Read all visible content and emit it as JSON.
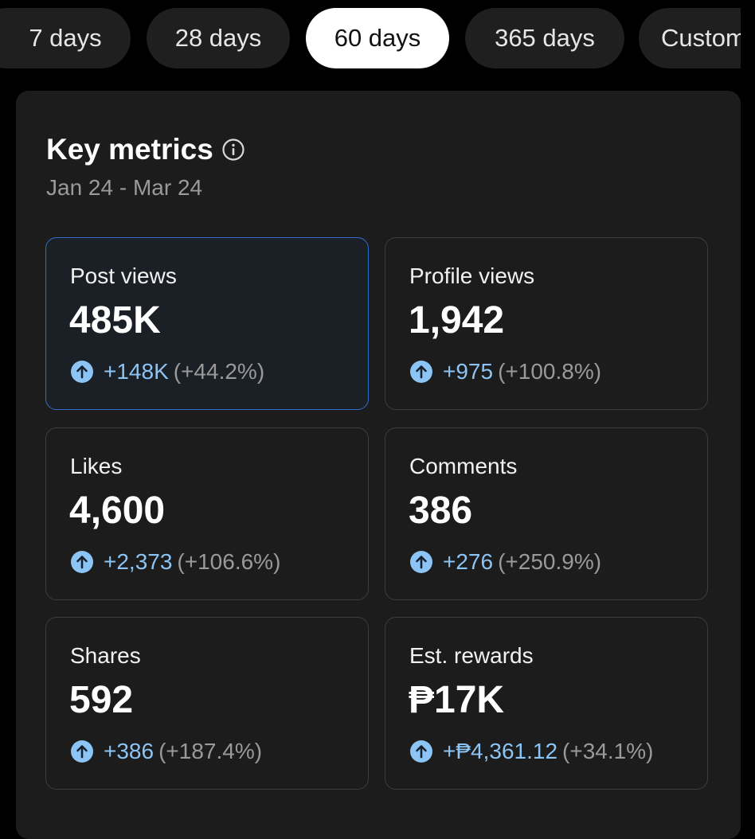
{
  "tabs": [
    {
      "label": "7 days",
      "active": false
    },
    {
      "label": "28 days",
      "active": false
    },
    {
      "label": "60 days",
      "active": true
    },
    {
      "label": "365 days",
      "active": false
    },
    {
      "label": "Custom",
      "active": false
    }
  ],
  "key_metrics": {
    "title": "Key metrics",
    "date_range": "Jan 24 - Mar 24"
  },
  "metrics": [
    {
      "label": "Post views",
      "value": "485K",
      "delta": "+148K",
      "pct": "(+44.2%)",
      "selected": true
    },
    {
      "label": "Profile views",
      "value": "1,942",
      "delta": "+975",
      "pct": "(+100.8%)",
      "selected": false
    },
    {
      "label": "Likes",
      "value": "4,600",
      "delta": "+2,373",
      "pct": "(+106.6%)",
      "selected": false
    },
    {
      "label": "Comments",
      "value": "386",
      "delta": "+276",
      "pct": "(+250.9%)",
      "selected": false
    },
    {
      "label": "Shares",
      "value": "592",
      "delta": "+386",
      "pct": "(+187.4%)",
      "selected": false
    },
    {
      "label": "Est. rewards",
      "value": "₱17K",
      "delta": "+₱4,361.12",
      "pct": "(+34.1%)",
      "selected": false
    }
  ],
  "colors": {
    "accent": "#8cc4f5",
    "selected_border": "#2f6fc7",
    "panel": "#1c1c1c",
    "background": "#000000"
  },
  "icons": {
    "info": "info-icon",
    "trend_up": "arrow-up-circle-icon"
  }
}
